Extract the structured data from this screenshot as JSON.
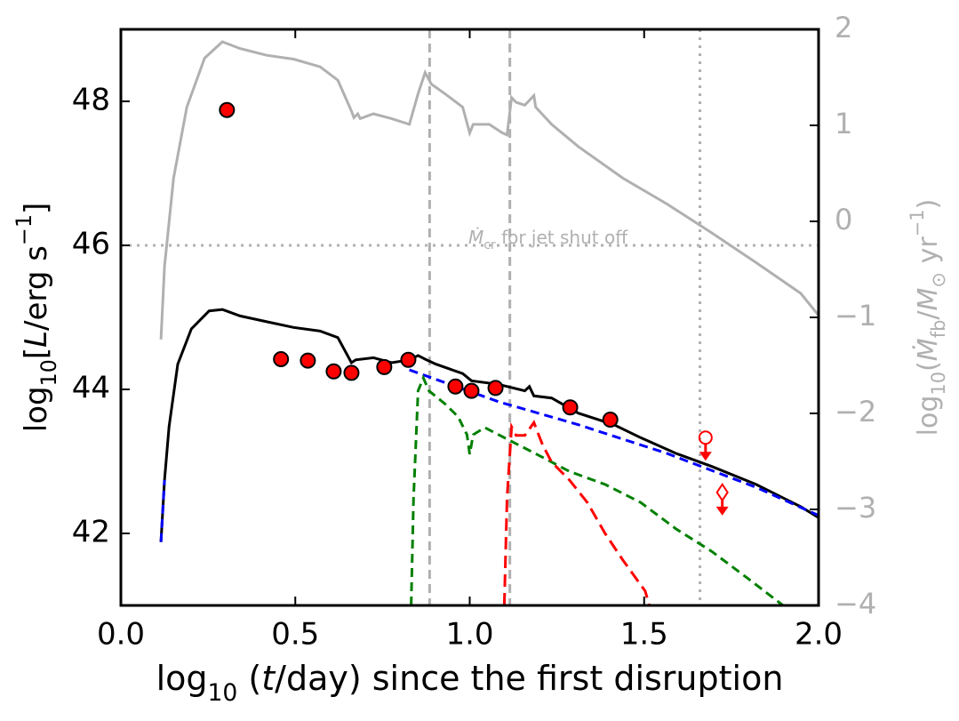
{
  "chart_data": {
    "type": "line",
    "xlim": [
      0,
      2
    ],
    "ylim": [
      41,
      49
    ],
    "y2lim": [
      -4,
      2
    ],
    "xticks": [
      {
        "value": 0,
        "label": "0.0"
      },
      0.5,
      {
        "value": 1,
        "label": "1.0"
      },
      1.5,
      {
        "value": 2,
        "label": "2.0"
      }
    ],
    "yticks": [
      42,
      44,
      46,
      48
    ],
    "y2ticks": [
      {
        "value": -4,
        "label": "−4"
      },
      {
        "value": -3,
        "label": "−3"
      },
      {
        "value": -2,
        "label": "−2"
      },
      {
        "value": -1,
        "label": "−1"
      },
      0,
      1,
      2
    ],
    "y2color": "#b0b0b0",
    "xlabel": [
      {
        "text": "log"
      },
      {
        "sub": "10"
      },
      {
        "text": " ("
      },
      {
        "italic": "t"
      },
      {
        "text": "/day) since the first disruption"
      }
    ],
    "ylabel": [
      {
        "text": "log"
      },
      {
        "sub": "10"
      },
      {
        "text": "["
      },
      {
        "italic": "L"
      },
      {
        "text": "/erg s"
      },
      {
        "sup": "−1"
      },
      {
        "text": "]"
      }
    ],
    "y2label": [
      {
        "text": "log"
      },
      {
        "sub": "10"
      },
      {
        "text": "("
      },
      {
        "italic": "Ṁ"
      },
      {
        "sub": "fb"
      },
      {
        "text": "/"
      },
      {
        "italic": "M"
      },
      {
        "sub": "⊙"
      },
      {
        "text": " yr"
      },
      {
        "sup": "−1"
      },
      {
        "text": ")"
      }
    ],
    "annotation": [
      {
        "italic": "Ṁ"
      },
      {
        "sub": "cr"
      },
      {
        "text": " for jet shut off"
      }
    ],
    "series": [
      {
        "color": "#b0b0b0",
        "style": "solid",
        "axis": "y2",
        "x": [
          0.115,
          0.125,
          0.151,
          0.189,
          0.24,
          0.291,
          0.342,
          0.418,
          0.495,
          0.571,
          0.622,
          0.661,
          0.668,
          0.679,
          0.686,
          0.724,
          0.776,
          0.827,
          0.852,
          0.872,
          0.89,
          0.929,
          0.98,
          1.0,
          1.01,
          1.056,
          1.094,
          1.107,
          1.12,
          1.133,
          1.158,
          1.184,
          1.189,
          1.235,
          1.311,
          1.439,
          1.566,
          1.694,
          1.821,
          1.949,
          2.0
        ],
        "values": [
          -1.23,
          -0.47,
          0.45,
          1.19,
          1.7,
          1.87,
          1.8,
          1.73,
          1.69,
          1.61,
          1.47,
          1.15,
          1.08,
          1.12,
          1.07,
          1.12,
          1.07,
          1.01,
          1.33,
          1.55,
          1.43,
          1.33,
          1.19,
          0.92,
          1.01,
          1.01,
          0.92,
          0.9,
          1.29,
          1.24,
          1.21,
          1.31,
          1.19,
          1.01,
          0.78,
          0.45,
          0.18,
          -0.12,
          -0.43,
          -0.75,
          -0.98
        ]
      },
      {
        "color": "#000000",
        "style": "solid",
        "axis": "y",
        "x": [
          0.115,
          0.125,
          0.138,
          0.163,
          0.202,
          0.253,
          0.291,
          0.342,
          0.418,
          0.495,
          0.571,
          0.622,
          0.661,
          0.673,
          0.724,
          0.776,
          0.827,
          0.852,
          0.872,
          0.903,
          0.98,
          1.005,
          1.082,
          1.158,
          1.171,
          1.184,
          1.235,
          1.311,
          1.413,
          1.49,
          1.592,
          1.694,
          1.821,
          1.949,
          2.0
        ],
        "values": [
          41.88,
          42.74,
          43.48,
          44.35,
          44.84,
          45.09,
          45.11,
          45.02,
          44.94,
          44.86,
          44.81,
          44.72,
          44.37,
          44.41,
          44.44,
          44.37,
          44.41,
          44.47,
          44.42,
          44.35,
          44.22,
          44.12,
          44.07,
          43.98,
          44.04,
          43.91,
          43.88,
          43.67,
          43.51,
          43.33,
          43.11,
          42.93,
          42.68,
          42.37,
          42.22
        ]
      },
      {
        "color": "#0000ff",
        "style": "dashed",
        "axis": "y",
        "x": [
          0.115,
          0.125,
          null,
          0.827,
          1.082,
          1.311,
          1.566,
          1.821,
          2.0
        ],
        "values": [
          41.88,
          42.74,
          null,
          44.27,
          43.83,
          43.51,
          43.11,
          42.64,
          42.25
        ]
      },
      {
        "color": "#008000",
        "style": "dashed",
        "axis": "y",
        "x": [
          0.832,
          0.839,
          0.852,
          0.867,
          0.883,
          0.929,
          0.967,
          0.992,
          1.0,
          1.01,
          1.043,
          1.107,
          1.184,
          1.286,
          1.388,
          1.49,
          1.592,
          1.694,
          1.796,
          1.898
        ],
        "values": [
          41.0,
          42.49,
          43.98,
          44.16,
          43.98,
          43.8,
          43.62,
          43.37,
          43.1,
          43.37,
          43.47,
          43.31,
          43.12,
          42.86,
          42.68,
          42.43,
          42.06,
          41.75,
          41.38,
          41.0
        ]
      },
      {
        "color": "#ff0000",
        "style": "longdash",
        "axis": "y",
        "x": [
          1.099,
          1.107,
          1.12,
          1.133,
          1.158,
          1.184,
          1.209,
          1.235,
          1.286,
          1.337,
          1.388,
          1.439,
          1.503,
          1.515
        ],
        "values": [
          41.0,
          42.49,
          43.48,
          43.36,
          43.36,
          43.54,
          43.23,
          42.99,
          42.74,
          42.43,
          42.0,
          41.63,
          41.2,
          41.0
        ]
      }
    ],
    "points": {
      "color": "#ff0000",
      "x": [
        0.304,
        0.459,
        0.536,
        0.61,
        0.661,
        0.755,
        0.824,
        0.959,
        1.005,
        1.074,
        1.288,
        1.403
      ],
      "values": [
        47.88,
        44.42,
        44.4,
        44.25,
        44.23,
        44.31,
        44.41,
        44.04,
        43.98,
        44.02,
        43.75,
        43.58
      ]
    },
    "upper_limits": {
      "color": "#ff0000",
      "markers": [
        "circle",
        "diamond"
      ],
      "x": [
        1.676,
        1.724
      ],
      "values": [
        43.33,
        42.57
      ]
    },
    "vlines": [
      {
        "x": 0.885,
        "style": "dashed"
      },
      {
        "x": 1.115,
        "style": "dashed"
      },
      {
        "x": 1.66,
        "style": "dotted"
      }
    ],
    "hlines": [
      {
        "y": 46,
        "style": "dotted"
      }
    ]
  }
}
